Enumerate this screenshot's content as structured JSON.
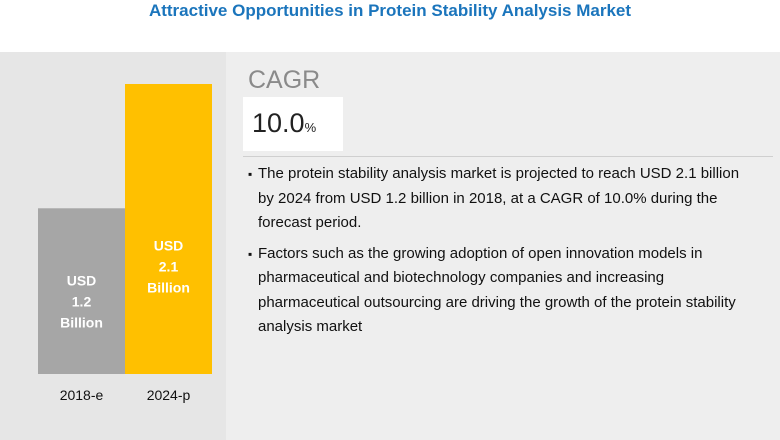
{
  "title": "Attractive Opportunities in Protein Stability Analysis Market",
  "cagr": {
    "label": "CAGR",
    "value": "10.0",
    "unit": "%"
  },
  "bullets": [
    "The protein stability analysis market is projected to reach USD 2.1 billion by 2024 from USD 1.2 billion in 2018, at a CAGR of 10.0% during the forecast period.",
    "Factors such as the growing adoption of open innovation models in pharmaceutical and biotechnology companies and increasing pharmaceutical outsourcing are driving the growth of the protein stability analysis market"
  ],
  "chart_data": {
    "type": "bar",
    "categories": [
      "2018-e",
      "2024-p"
    ],
    "values": [
      1.2,
      2.1
    ],
    "labels": [
      [
        "USD",
        "1.2",
        "Billion"
      ],
      [
        "USD",
        "2.1",
        "Billion"
      ]
    ],
    "colors": [
      "#a6a6a6",
      "#ffc000"
    ],
    "ylim": [
      0,
      2.1
    ]
  }
}
